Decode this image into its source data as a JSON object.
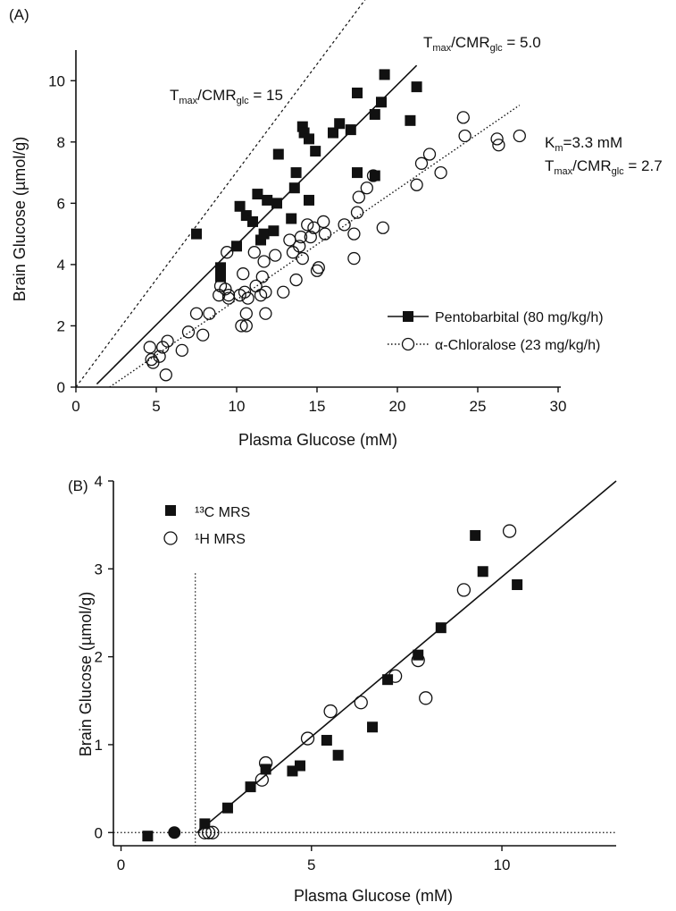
{
  "panels": [
    {
      "panel_label": "(A)",
      "annotations": {
        "t15": {
          "main": "T",
          "sub1": "max",
          "mid": "/CMR",
          "sub2": "glc",
          "tail": " = 15"
        },
        "t5": {
          "main": "T",
          "sub1": "max",
          "mid": "/CMR",
          "sub2": "glc",
          "tail": " = 5.0"
        },
        "km": {
          "main": "K",
          "sub1": "m",
          "tail": "=3.3 mM"
        },
        "t27": {
          "main": "T",
          "sub1": "max",
          "mid": "/CMR",
          "sub2": "glc",
          "tail": " = 2.7"
        }
      }
    },
    {
      "panel_label": "(B)"
    }
  ],
  "chart_data": [
    {
      "type": "scatter",
      "title": "",
      "xlabel": "Plasma Glucose (mM)",
      "ylabel": "Brain Glucose (µmol/g)",
      "xlim": [
        0,
        30
      ],
      "ylim": [
        0,
        11
      ],
      "xticks": [
        0,
        5,
        10,
        15,
        20,
        25,
        30
      ],
      "yticks": [
        0,
        2,
        4,
        6,
        8,
        10
      ],
      "legend_position": "lower-right",
      "series": [
        {
          "name": "Pentobarbital (80 mg/kg/h)",
          "marker": "filled-square",
          "line": "solid",
          "points": [
            [
              7.5,
              5.0
            ],
            [
              9.0,
              3.9
            ],
            [
              9.0,
              3.6
            ],
            [
              10.0,
              4.6
            ],
            [
              10.2,
              5.9
            ],
            [
              10.6,
              5.6
            ],
            [
              11.0,
              5.4
            ],
            [
              11.3,
              6.3
            ],
            [
              11.5,
              4.8
            ],
            [
              11.7,
              5.0
            ],
            [
              11.9,
              6.1
            ],
            [
              12.3,
              5.1
            ],
            [
              12.5,
              6.0
            ],
            [
              12.6,
              7.6
            ],
            [
              13.4,
              5.5
            ],
            [
              13.6,
              6.5
            ],
            [
              13.7,
              7.0
            ],
            [
              14.1,
              8.5
            ],
            [
              14.2,
              8.3
            ],
            [
              14.5,
              8.1
            ],
            [
              14.5,
              6.1
            ],
            [
              14.9,
              7.7
            ],
            [
              16.0,
              8.3
            ],
            [
              16.4,
              8.6
            ],
            [
              17.1,
              8.4
            ],
            [
              17.5,
              9.6
            ],
            [
              17.5,
              7.0
            ],
            [
              18.6,
              8.9
            ],
            [
              18.6,
              6.9
            ],
            [
              19.0,
              9.3
            ],
            [
              19.2,
              10.2
            ],
            [
              20.8,
              8.7
            ],
            [
              21.2,
              9.8
            ]
          ],
          "fit": {
            "x": [
              1.3,
              21.2
            ],
            "y": [
              0.1,
              10.5
            ]
          }
        },
        {
          "name": "α-Chloralose (23 mg/kg/h)",
          "marker": "open-circle",
          "line": "dotted",
          "points": [
            [
              4.6,
              1.3
            ],
            [
              4.7,
              0.9
            ],
            [
              4.8,
              0.8
            ],
            [
              5.2,
              1.0
            ],
            [
              5.4,
              1.3
            ],
            [
              5.6,
              0.4
            ],
            [
              5.7,
              1.5
            ],
            [
              6.6,
              1.2
            ],
            [
              7.0,
              1.8
            ],
            [
              7.5,
              2.4
            ],
            [
              7.9,
              1.7
            ],
            [
              8.3,
              2.4
            ],
            [
              8.9,
              3.0
            ],
            [
              9.0,
              3.3
            ],
            [
              9.3,
              3.2
            ],
            [
              9.4,
              4.4
            ],
            [
              9.5,
              3.0
            ],
            [
              9.5,
              2.9
            ],
            [
              10.2,
              3.0
            ],
            [
              10.3,
              2.0
            ],
            [
              10.4,
              3.7
            ],
            [
              10.5,
              3.1
            ],
            [
              10.6,
              2.0
            ],
            [
              10.6,
              2.4
            ],
            [
              10.7,
              2.9
            ],
            [
              11.1,
              4.4
            ],
            [
              11.2,
              3.3
            ],
            [
              11.5,
              3.0
            ],
            [
              11.6,
              3.6
            ],
            [
              11.7,
              4.1
            ],
            [
              11.8,
              3.1
            ],
            [
              11.8,
              2.4
            ],
            [
              12.4,
              4.3
            ],
            [
              12.9,
              3.1
            ],
            [
              13.3,
              4.8
            ],
            [
              13.5,
              4.4
            ],
            [
              13.7,
              3.5
            ],
            [
              13.9,
              4.6
            ],
            [
              14.0,
              4.9
            ],
            [
              14.1,
              4.2
            ],
            [
              14.4,
              5.3
            ],
            [
              14.6,
              4.9
            ],
            [
              14.8,
              5.2
            ],
            [
              15.0,
              3.8
            ],
            [
              15.1,
              3.9
            ],
            [
              15.4,
              5.4
            ],
            [
              15.5,
              5.0
            ],
            [
              16.7,
              5.3
            ],
            [
              17.3,
              5.0
            ],
            [
              17.3,
              4.2
            ],
            [
              17.5,
              5.7
            ],
            [
              17.6,
              6.2
            ],
            [
              18.1,
              6.5
            ],
            [
              18.5,
              6.9
            ],
            [
              19.1,
              5.2
            ],
            [
              21.2,
              6.6
            ],
            [
              21.5,
              7.3
            ],
            [
              22.0,
              7.6
            ],
            [
              22.7,
              7.0
            ],
            [
              24.1,
              8.8
            ],
            [
              24.2,
              8.2
            ],
            [
              26.2,
              8.1
            ],
            [
              26.3,
              7.9
            ],
            [
              27.6,
              8.2
            ]
          ],
          "fit": {
            "x": [
              2.1,
              27.6
            ],
            "y": [
              0.0,
              9.2
            ]
          }
        }
      ],
      "reference_lines": [
        {
          "style": "dashed",
          "x": [
            0.0,
            18.5
          ],
          "y": [
            0.0,
            13.0
          ]
        }
      ]
    },
    {
      "type": "scatter",
      "title": "",
      "xlabel": "Plasma Glucose (mM)",
      "ylabel": "Brain Glucose (µmol/g)",
      "xlim": [
        -0.2,
        13.0
      ],
      "ylim": [
        -0.15,
        4
      ],
      "xticks": [
        0,
        5,
        10
      ],
      "yticks": [
        0,
        1,
        2,
        3,
        4
      ],
      "legend_position": "top-left",
      "series": [
        {
          "name": "¹³C MRS",
          "marker": "filled-square",
          "points": [
            [
              0.7,
              -0.04
            ],
            [
              2.2,
              0.1
            ],
            [
              2.8,
              0.28
            ],
            [
              3.4,
              0.52
            ],
            [
              3.8,
              0.72
            ],
            [
              4.5,
              0.7
            ],
            [
              4.7,
              0.76
            ],
            [
              5.4,
              1.05
            ],
            [
              5.7,
              0.88
            ],
            [
              6.6,
              1.2
            ],
            [
              7.0,
              1.74
            ],
            [
              7.8,
              2.02
            ],
            [
              8.4,
              2.33
            ],
            [
              9.3,
              3.38
            ],
            [
              9.5,
              2.97
            ],
            [
              10.4,
              2.82
            ]
          ]
        },
        {
          "name": "¹H MRS",
          "marker": "open-circle",
          "points": [
            [
              2.2,
              0.0
            ],
            [
              2.3,
              0.0
            ],
            [
              2.4,
              0.0
            ],
            [
              3.7,
              0.6
            ],
            [
              3.8,
              0.79
            ],
            [
              4.9,
              1.07
            ],
            [
              5.5,
              1.38
            ],
            [
              6.3,
              1.48
            ],
            [
              7.2,
              1.78
            ],
            [
              7.8,
              1.96
            ],
            [
              8.0,
              1.53
            ],
            [
              9.0,
              2.76
            ],
            [
              10.2,
              3.43
            ]
          ]
        },
        {
          "name": "",
          "marker": "filled-circle",
          "points": [
            [
              1.4,
              0.0
            ]
          ]
        }
      ],
      "fit": {
        "x": [
          2.0,
          13.0
        ],
        "y": [
          0.0,
          4.0
        ]
      },
      "reference_lines": [
        {
          "style": "dotted",
          "orientation": "vertical",
          "x": 1.95
        },
        {
          "style": "dotted",
          "orientation": "horizontal",
          "y": 0.0
        }
      ]
    }
  ]
}
